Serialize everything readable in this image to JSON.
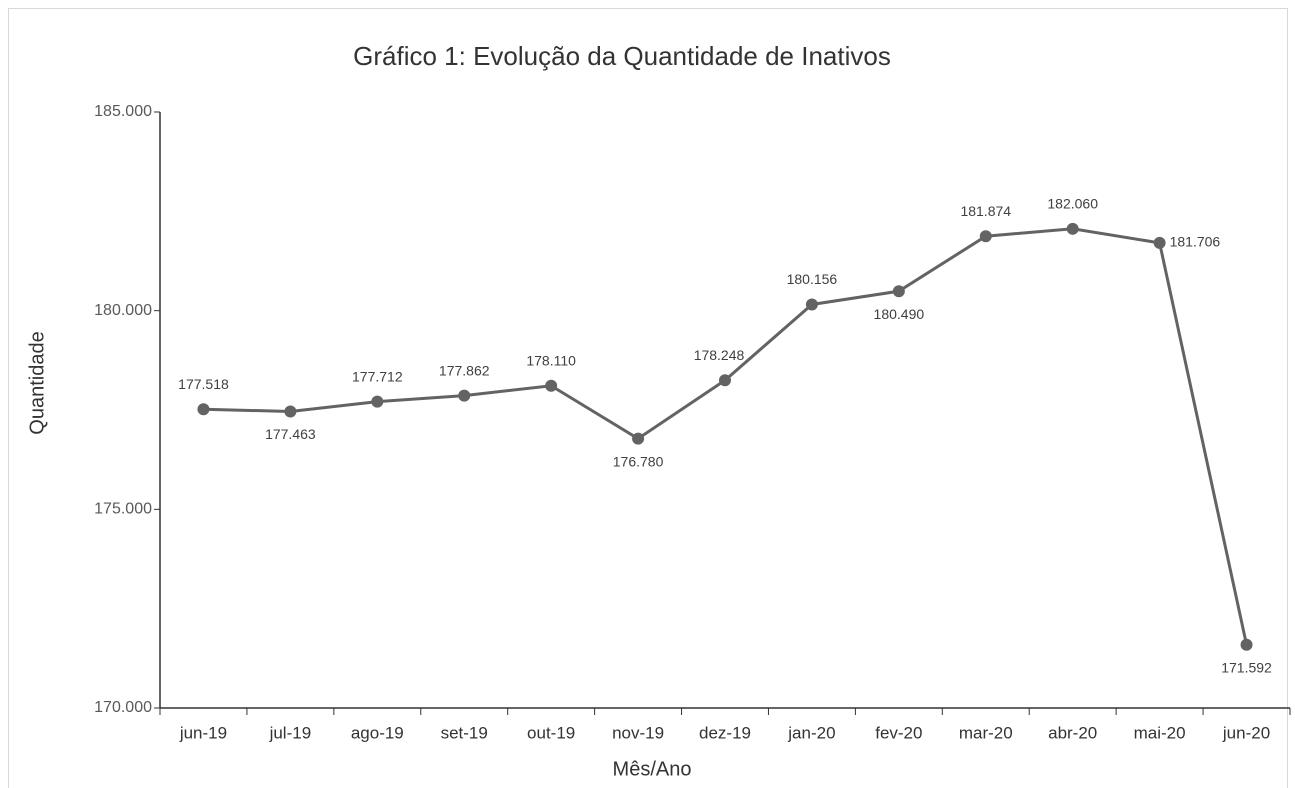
{
  "chart_data": {
    "type": "line",
    "title": "Gráfico 1: Evolução da Quantidade de Inativos",
    "x_label": "Mês/Ano",
    "y_label": "Quantidade",
    "categories": [
      "jun-19",
      "jul-19",
      "ago-19",
      "set-19",
      "out-19",
      "nov-19",
      "dez-19",
      "jan-20",
      "fev-20",
      "mar-20",
      "abr-20",
      "mai-20",
      "jun-20"
    ],
    "series": [
      {
        "name": "Quantidade",
        "color": "#636363",
        "values": [
          177518,
          177463,
          177712,
          177862,
          178110,
          176780,
          178248,
          180156,
          180490,
          181874,
          182060,
          181706,
          171592
        ],
        "value_labels": [
          "177.518",
          "177.463",
          "177.712",
          "177.862",
          "178.110",
          "176.780",
          "178.248",
          "180.156",
          "180.490",
          "181.874",
          "182.060",
          "181.706",
          "171.592"
        ]
      }
    ],
    "ylim": [
      170000,
      185000
    ],
    "yticks": [
      {
        "value": 170000,
        "label": "170.000"
      },
      {
        "value": 175000,
        "label": "175.000"
      },
      {
        "value": 180000,
        "label": "180.000"
      },
      {
        "value": 185000,
        "label": "185.000"
      }
    ],
    "grid": false
  }
}
